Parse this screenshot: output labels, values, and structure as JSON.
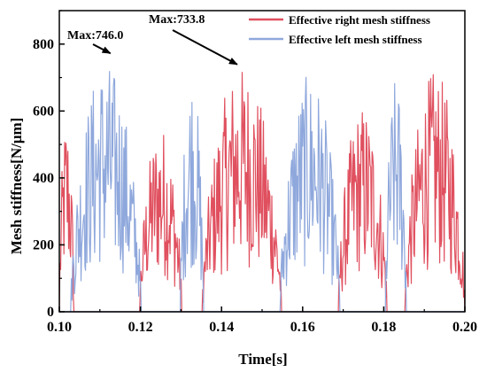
{
  "chart_data": {
    "type": "line",
    "xlabel": "Time[s]",
    "ylabel": "Mesh stiffness[N/μm]",
    "xlim": [
      0.1,
      0.2
    ],
    "ylim": [
      0,
      900
    ],
    "x_ticks": [
      "0.10",
      "0.12",
      "0.14",
      "0.16",
      "0.18",
      "0.20"
    ],
    "y_ticks": [
      "0",
      "200",
      "400",
      "600",
      "800"
    ],
    "legend": "top-right",
    "grid": false,
    "colors": {
      "right": "#e0505f",
      "left": "#8fa8dc",
      "axis": "#000000"
    },
    "series": [
      {
        "key": "right",
        "name": "Effective right mesh stiffness",
        "segments": [
          {
            "x0": 0.1,
            "x1": 0.1036,
            "peak": 590
          },
          {
            "x0": 0.1198,
            "x1": 0.1302,
            "peak": 560
          },
          {
            "x0": 0.1352,
            "x1": 0.1548,
            "peak": 733.8
          },
          {
            "x0": 0.1688,
            "x1": 0.1808,
            "peak": 620
          },
          {
            "x0": 0.1852,
            "x1": 0.2,
            "peak": 720
          }
        ]
      },
      {
        "key": "left",
        "name": "Effective left mesh stiffness",
        "segments": [
          {
            "x0": 0.1028,
            "x1": 0.1202,
            "peak": 746.0
          },
          {
            "x0": 0.1298,
            "x1": 0.1356,
            "peak": 720
          },
          {
            "x0": 0.1544,
            "x1": 0.1692,
            "peak": 710
          },
          {
            "x0": 0.1804,
            "x1": 0.1856,
            "peak": 700
          }
        ]
      }
    ],
    "annotations": [
      {
        "text": "Max:746.0",
        "x": 0.1128,
        "y": 746.0
      },
      {
        "text": "Max:733.8",
        "x": 0.1443,
        "y": 733.8
      }
    ]
  }
}
